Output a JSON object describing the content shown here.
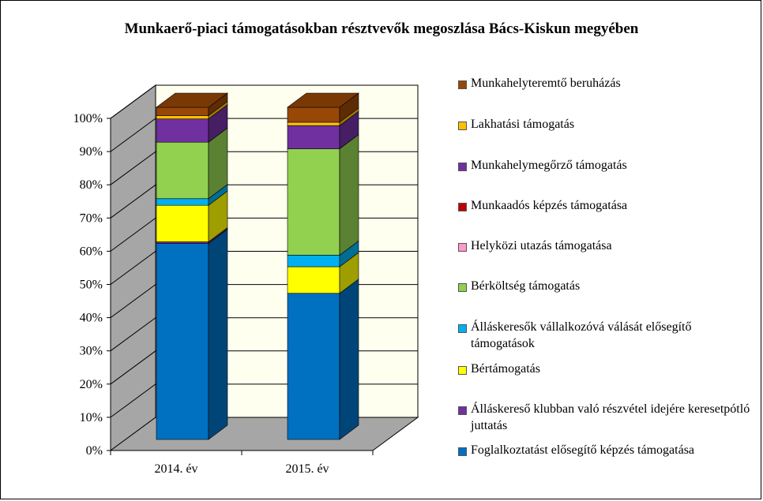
{
  "chart_data": {
    "type": "bar",
    "stacked": true,
    "three_d": true,
    "title": "Munkaerő-piaci támogatásokban résztvevők megoszlása Bács-Kiskun megyében",
    "categories": [
      "2014. év",
      "2015. év"
    ],
    "ylim": [
      0,
      100
    ],
    "yticks": [
      "0%",
      "10%",
      "20%",
      "30%",
      "40%",
      "50%",
      "60%",
      "70%",
      "80%",
      "90%",
      "100%"
    ],
    "grid": true,
    "legend_position": "right",
    "series": [
      {
        "name": "Foglalkoztatást elősegítő képzés támogatása",
        "color": "#0070C0",
        "values": [
          59,
          44
        ]
      },
      {
        "name": "Álláskereső klubban való részvétel idejére keresetpótló juttatás",
        "color": "#7030A0",
        "values": [
          0.5,
          0
        ]
      },
      {
        "name": "Bértámogatás",
        "color": "#FFFF00",
        "values": [
          11,
          8
        ]
      },
      {
        "name": "Álláskeresők vállalkozóvá válását elősegítő támogatások",
        "color": "#00B0F0",
        "values": [
          2,
          3.5
        ]
      },
      {
        "name": "Bérköltség támogatás",
        "color": "#92D050",
        "values": [
          17,
          32
        ]
      },
      {
        "name": "Helyközi utazás támogatása",
        "color": "#FF99CC",
        "values": [
          0,
          0
        ]
      },
      {
        "name": "Munkaadós képzés támogatása",
        "color": "#C00000",
        "values": [
          0,
          0
        ]
      },
      {
        "name": "Munkahelymegőrző támogatás",
        "color": "#7030A0",
        "values": [
          7,
          7
        ]
      },
      {
        "name": "Lakhatási támogatás",
        "color": "#FFC000",
        "values": [
          1,
          1
        ]
      },
      {
        "name": "Munkahelyteremtő beruházás",
        "color": "#974706",
        "values": [
          2.5,
          4.5
        ]
      }
    ]
  }
}
